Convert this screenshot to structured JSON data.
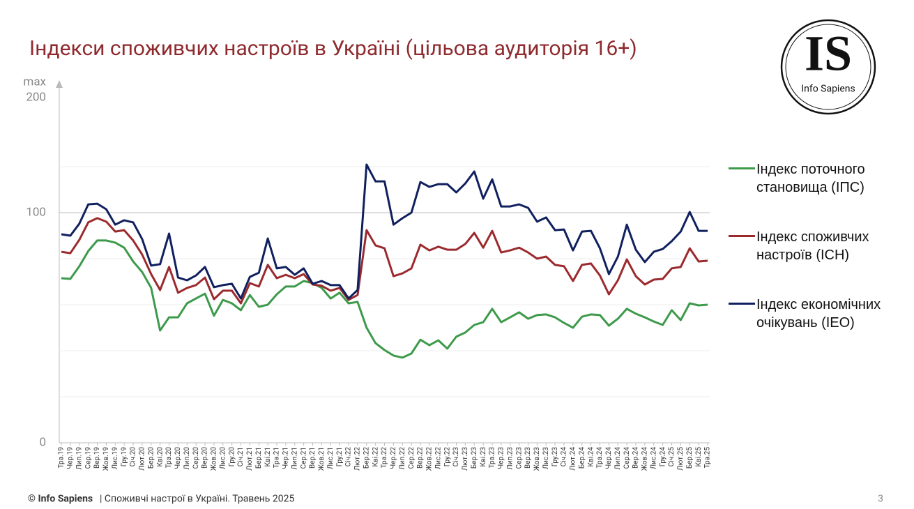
{
  "chart_data": {
    "type": "line",
    "title": "Індекси споживчих настроїв в Україні (цільова аудиторія 16+)",
    "categories": [
      "Тра.19",
      "Чер.19",
      "Лип.19",
      "Сер.19",
      "Вер.19",
      "Жов.19",
      "Лис.19",
      "Гру.19",
      "Січ.20",
      "Лют.20",
      "Бер.20",
      "Кві.20",
      "Тра.20",
      "Чер.20",
      "Лип.20",
      "Сер.20",
      "Вер.20",
      "Жов.20",
      "Лис.20",
      "Гру.20",
      "Січ.21",
      "Лют.21",
      "Бер.21",
      "Кві.21",
      "Тра.21",
      "Чер.21",
      "Лип.21",
      "Сер.21",
      "Вер.21",
      "Жов.21",
      "Лис.21",
      "Гру.21",
      "Січ.22",
      "Лют.22",
      "Бер.22",
      "Кві.22",
      "Тра.22",
      "Чер.22",
      "Лип.22",
      "Сер.22",
      "Вер.22",
      "Жов.22",
      "Лис.22",
      "Гру.22",
      "Січ.23",
      "Лют.23",
      "Бер.23",
      "Кві.23",
      "Тра.23",
      "Чер.23",
      "Лип.23",
      "Сер.23",
      "Вер.23",
      "Жов.23",
      "Лис.23",
      "Гру.23",
      "Січ.24",
      "Лют.24",
      "Бер.24",
      "Кві.24",
      "Тра.24",
      "Чер.24",
      "Лип.24",
      "Сер.24",
      "Вер.24",
      "Жов.24",
      "Лис.24",
      "Гру.24",
      "Січ.25",
      "Лют.25",
      "Бер.25",
      "Кві.25",
      "Тра.25"
    ],
    "series": [
      {
        "name": "Індекс поточного становища (ІПС)",
        "color": "#3d9a4b",
        "values": [
          71.5,
          71.2,
          76.7,
          83.3,
          87.9,
          87.9,
          87.0,
          84.8,
          78.8,
          74.2,
          67.3,
          48.8,
          54.5,
          54.5,
          60.6,
          62.7,
          64.8,
          55.2,
          62.1,
          60.6,
          57.6,
          64.2,
          59.1,
          60.0,
          64.5,
          67.9,
          67.9,
          70.3,
          69.4,
          67.3,
          62.7,
          65.2,
          60.6,
          61.2,
          50.0,
          43.3,
          40.3,
          37.9,
          37.0,
          38.8,
          44.8,
          42.4,
          44.5,
          40.9,
          46.1,
          47.9,
          51.2,
          52.4,
          58.2,
          52.4,
          54.5,
          56.7,
          53.9,
          55.5,
          55.8,
          54.5,
          52.1,
          50.0,
          54.8,
          55.8,
          55.5,
          50.9,
          53.9,
          58.2,
          56.1,
          54.5,
          52.7,
          51.2,
          57.6,
          53.3,
          60.6,
          59.7,
          60.0
        ]
      },
      {
        "name": "Індекс споживчих настроїв (ІСН)",
        "color": "#9b2a2e",
        "values": [
          83.0,
          82.4,
          88.2,
          95.8,
          97.6,
          96.1,
          91.8,
          92.4,
          87.9,
          81.8,
          73.3,
          66.4,
          76.4,
          65.2,
          67.3,
          68.5,
          71.8,
          62.4,
          66.1,
          66.1,
          60.6,
          69.4,
          67.9,
          77.3,
          71.5,
          73.0,
          71.5,
          73.3,
          68.8,
          68.2,
          66.1,
          67.3,
          62.1,
          64.2,
          92.4,
          85.8,
          84.5,
          72.4,
          73.6,
          75.8,
          86.1,
          83.6,
          85.2,
          83.9,
          83.9,
          86.4,
          91.2,
          84.8,
          92.1,
          82.7,
          83.6,
          84.8,
          82.7,
          80.0,
          80.9,
          77.3,
          76.7,
          70.3,
          77.3,
          77.9,
          72.7,
          64.5,
          70.6,
          79.7,
          72.4,
          68.8,
          70.9,
          71.2,
          75.8,
          76.4,
          84.5,
          78.8,
          79.1
        ]
      },
      {
        "name": "Індекс економічних очікувань (ІЕО)",
        "color": "#10205e",
        "values": [
          90.6,
          90.0,
          95.2,
          103.6,
          103.9,
          101.5,
          94.8,
          96.7,
          95.8,
          88.5,
          77.0,
          77.6,
          90.9,
          71.8,
          70.6,
          72.7,
          76.4,
          67.6,
          68.5,
          69.1,
          62.7,
          72.1,
          73.9,
          88.8,
          75.8,
          76.4,
          73.0,
          75.8,
          69.1,
          70.3,
          68.5,
          68.5,
          62.7,
          66.4,
          120.9,
          113.6,
          113.6,
          94.8,
          97.6,
          100.0,
          113.3,
          111.2,
          112.4,
          112.4,
          108.8,
          112.7,
          117.9,
          106.1,
          114.5,
          102.7,
          102.7,
          103.6,
          102.1,
          96.1,
          97.9,
          92.4,
          92.7,
          83.6,
          91.8,
          92.1,
          84.5,
          73.3,
          80.9,
          94.8,
          83.9,
          78.5,
          83.0,
          84.2,
          87.6,
          91.8,
          100.3,
          92.1,
          92.1
        ]
      }
    ],
    "ylim": [
      0,
      150
    ],
    "yticks": [
      0,
      100
    ],
    "minor_grid": [
      20,
      40,
      60,
      80,
      120
    ],
    "y_axis_top_label": [
      "max",
      "200"
    ],
    "grid": true
  },
  "logo": {
    "mark": "IS",
    "name": "Info Sapiens"
  },
  "footer": {
    "brand": "© Info Sapiens",
    "text": "| Споживчі настрої в Україні. Травень 2025"
  },
  "page_number": "3"
}
